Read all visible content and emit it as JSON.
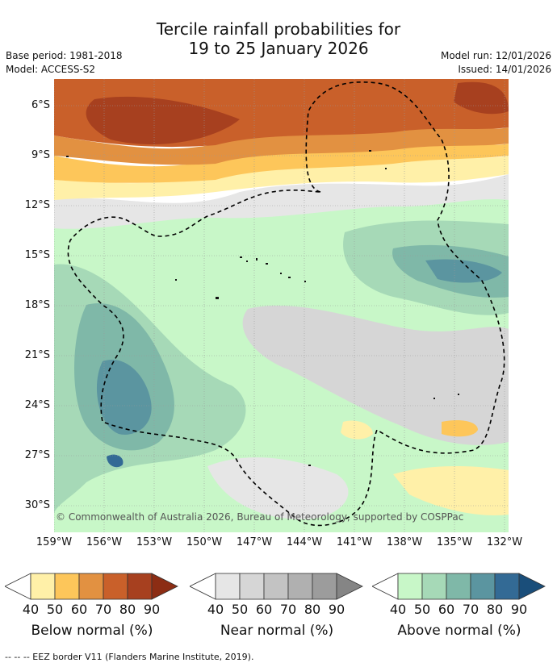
{
  "title": {
    "line1": "Tercile rainfall probabilities for",
    "line2": "19 to 25 January 2026"
  },
  "meta": {
    "base_period": "Base period: 1981-2018",
    "model": "Model: ACCESS-S2",
    "model_run": "Model run: 12/01/2026",
    "issued": "Issued: 14/01/2026"
  },
  "map": {
    "lat_labels": [
      "6°S",
      "9°S",
      "12°S",
      "15°S",
      "18°S",
      "21°S",
      "24°S",
      "27°S",
      "30°S"
    ],
    "lon_labels": [
      "159°W",
      "156°W",
      "153°W",
      "150°W",
      "147°W",
      "144°W",
      "141°W",
      "138°W",
      "135°W",
      "132°W"
    ],
    "copyright": "© Commonwealth of Australia 2026, Bureau of Meteorology, supported by COSPPac"
  },
  "legends": [
    {
      "title": "Below normal (%)",
      "ticks": [
        "40",
        "50",
        "60",
        "70",
        "80",
        "90"
      ],
      "colors": [
        "#fff0a8",
        "#fdc65a",
        "#e29141",
        "#c9602a",
        "#a7401f",
        "#8c2d14"
      ]
    },
    {
      "title": "Near normal (%)",
      "ticks": [
        "40",
        "50",
        "60",
        "70",
        "80",
        "90"
      ],
      "colors": [
        "#e6e6e6",
        "#d6d6d6",
        "#c3c3c3",
        "#b0b0b0",
        "#9c9c9c",
        "#858585"
      ]
    },
    {
      "title": "Above normal (%)",
      "ticks": [
        "40",
        "50",
        "60",
        "70",
        "80",
        "90"
      ],
      "colors": [
        "#c8f7c8",
        "#a6d9b7",
        "#7fb8a8",
        "#5b95a0",
        "#336a95",
        "#1a4e7a"
      ]
    }
  ],
  "footnote": "-- -- -- EEZ border V11 (Flanders Marine Institute, 2019)."
}
